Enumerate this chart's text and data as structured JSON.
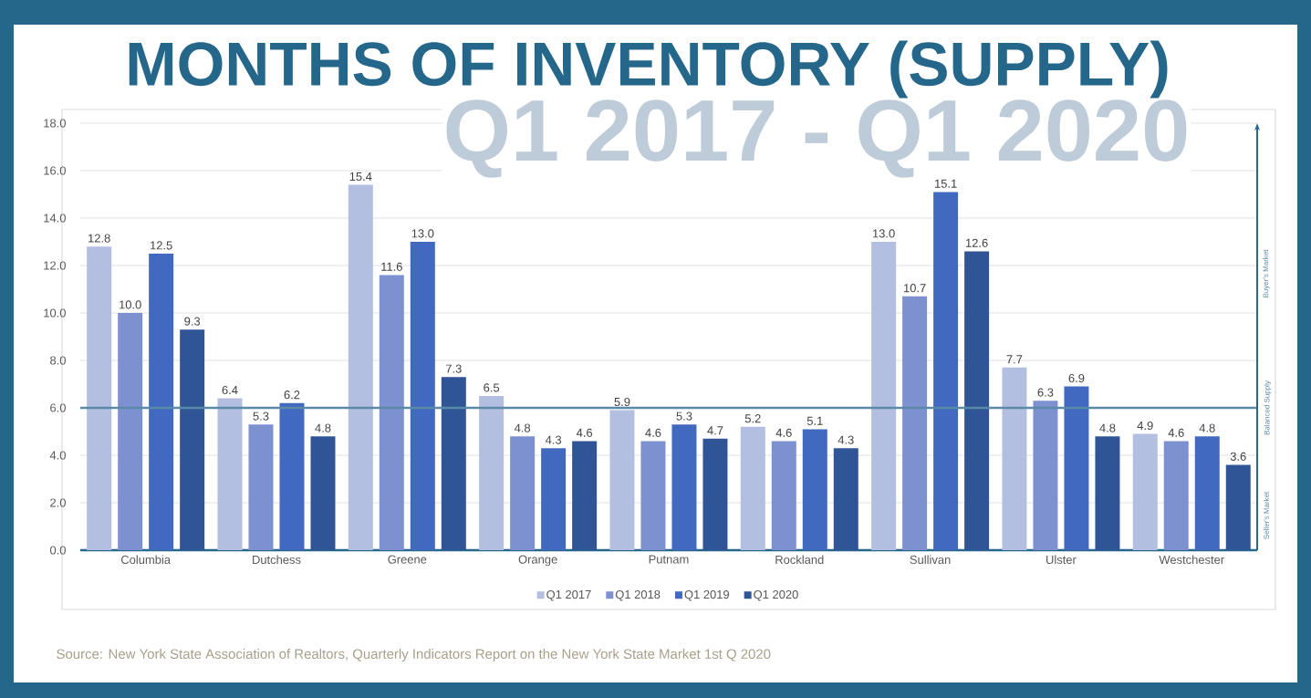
{
  "chart_data": {
    "type": "bar",
    "title": "MONTHS OF INVENTORY (SUPPLY)",
    "subtitle": "Q1 2017 - Q1 2020",
    "categories": [
      "Columbia",
      "Dutchess",
      "Greene",
      "Orange",
      "Putnam",
      "Rockland",
      "Sullivan",
      "Ulster",
      "Westchester"
    ],
    "series": [
      {
        "name": "Q1 2017",
        "color": "#b3bfe0",
        "values": [
          12.8,
          6.4,
          15.4,
          6.5,
          5.9,
          5.2,
          13.0,
          7.7,
          4.9
        ],
        "value_labels": [
          "12.8",
          "6.4",
          "15.4",
          "6.5",
          "5.9",
          "5.2",
          "13.0",
          "7.7",
          "4.9"
        ]
      },
      {
        "name": "Q1 2018",
        "color": "#7d90d0",
        "values": [
          10.0,
          5.3,
          11.6,
          4.8,
          4.6,
          4.6,
          10.7,
          6.3,
          4.6
        ],
        "value_labels": [
          "10.0",
          "5.3",
          "11.6",
          "4.8",
          "4.6",
          "4.6",
          "10.7",
          "6.3",
          "4.6"
        ]
      },
      {
        "name": "Q1 2019",
        "color": "#4169c0",
        "values": [
          12.5,
          6.2,
          13.0,
          4.3,
          5.3,
          5.1,
          15.1,
          6.9,
          4.8
        ],
        "value_labels": [
          "12.5",
          "6.2",
          "13.0",
          "4.3",
          "5.3",
          "5.1",
          "15.1",
          "6.9",
          "4.8"
        ]
      },
      {
        "name": "Q1 2020",
        "color": "#2f5597",
        "values": [
          9.3,
          4.8,
          7.3,
          4.6,
          4.7,
          4.3,
          12.6,
          4.8,
          3.6
        ],
        "value_labels": [
          "9.3",
          "4.8",
          "7.3",
          "4.6",
          "4.7",
          "4.3",
          "12.6",
          "4.8",
          "3.6"
        ]
      }
    ],
    "ylim": [
      0,
      18
    ],
    "yticks": [
      {
        "value": 0,
        "label": "0.0"
      },
      {
        "value": 2,
        "label": "2.0"
      },
      {
        "value": 4,
        "label": "4.0"
      },
      {
        "value": 6,
        "label": "6.0"
      },
      {
        "value": 8,
        "label": "8.0"
      },
      {
        "value": 10,
        "label": "10.0"
      },
      {
        "value": 12,
        "label": "12.0"
      },
      {
        "value": 14,
        "label": "14.0"
      },
      {
        "value": 16,
        "label": "16.0"
      },
      {
        "value": 18,
        "label": "18.0"
      }
    ],
    "ref_lines": [
      {
        "axis": "y",
        "value": 6,
        "label": "Balanced Supply",
        "color": "#5b8aa6"
      }
    ],
    "annotations": [
      "Buyer's Market",
      "Seller's Market",
      "Source: New York State Association of Realtors, Quarterly Indicators Report on the New York State Market 1st Q 2020"
    ],
    "grid": "y",
    "legend": "bottom"
  }
}
